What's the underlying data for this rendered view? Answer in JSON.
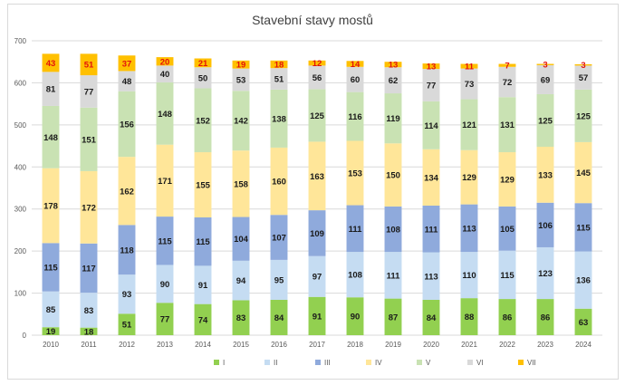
{
  "chart_data": {
    "type": "bar",
    "stacked": true,
    "title": "Stavební stavy mostů",
    "xlabel": "",
    "ylabel": "",
    "ylim": [
      0,
      700
    ],
    "yticks": [
      0,
      100,
      200,
      300,
      400,
      500,
      600,
      700
    ],
    "grid": true,
    "legend": "bottom",
    "categories": [
      "2010",
      "2011",
      "2012",
      "2013",
      "2014",
      "2015",
      "2016",
      "2017",
      "2018",
      "2019",
      "2020",
      "2021",
      "2022",
      "2023",
      "2024"
    ],
    "series": [
      {
        "name": "I",
        "color": "#92d050",
        "values": [
          19,
          18,
          51,
          77,
          74,
          83,
          84,
          91,
          90,
          87,
          84,
          88,
          86,
          86,
          63
        ]
      },
      {
        "name": "II",
        "color": "#c5dcf2",
        "values": [
          85,
          83,
          93,
          90,
          91,
          94,
          95,
          97,
          108,
          111,
          113,
          110,
          115,
          123,
          136
        ]
      },
      {
        "name": "III",
        "color": "#8faadc",
        "values": [
          115,
          117,
          118,
          115,
          115,
          104,
          107,
          109,
          111,
          108,
          111,
          113,
          105,
          106,
          115
        ]
      },
      {
        "name": "IV",
        "color": "#ffe699",
        "values": [
          178,
          172,
          162,
          171,
          155,
          158,
          160,
          163,
          153,
          150,
          134,
          129,
          129,
          133,
          145
        ]
      },
      {
        "name": "V",
        "color": "#c9e2b3",
        "values": [
          148,
          151,
          156,
          148,
          152,
          142,
          138,
          125,
          116,
          119,
          114,
          121,
          131,
          125,
          125
        ]
      },
      {
        "name": "VI",
        "color": "#d9d9d9",
        "values": [
          81,
          77,
          48,
          40,
          50,
          53,
          51,
          56,
          60,
          62,
          77,
          73,
          72,
          69,
          57
        ]
      },
      {
        "name": "VII",
        "color": "#ffc000",
        "values": [
          43,
          51,
          37,
          20,
          21,
          19,
          18,
          12,
          14,
          13,
          13,
          11,
          7,
          3,
          3
        ]
      }
    ]
  }
}
